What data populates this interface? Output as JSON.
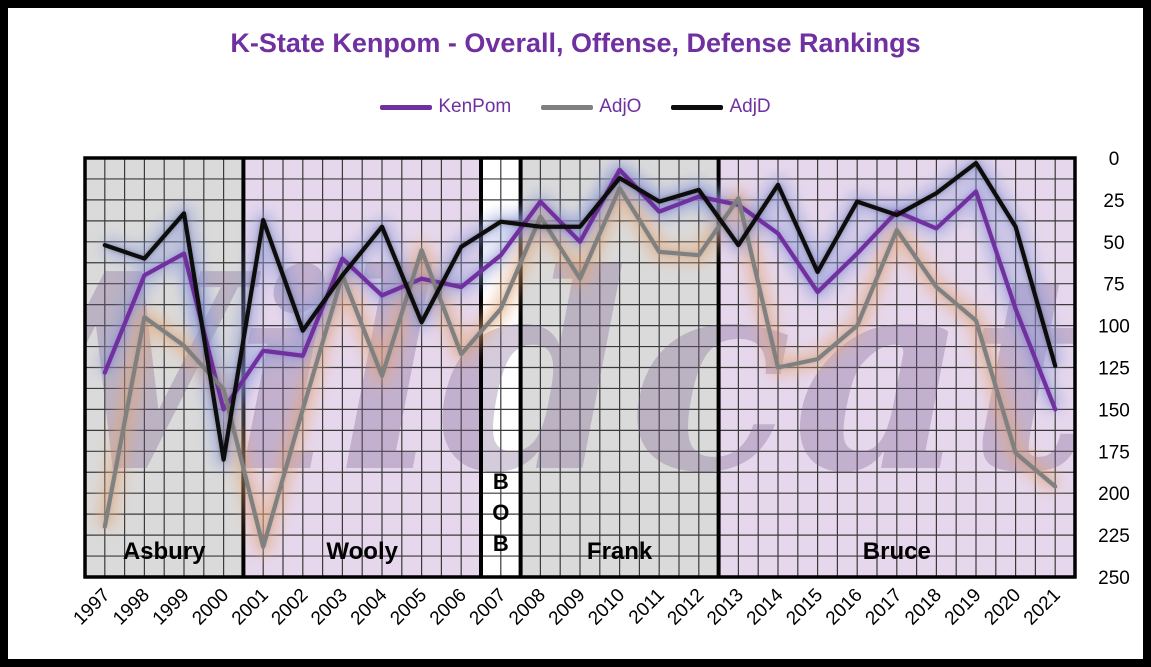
{
  "chart_data": {
    "type": "line",
    "title": "K-State Kenpom - Overall, Offense, Defense Rankings",
    "x": [
      "1997",
      "1998",
      "1999",
      "2000",
      "2001",
      "2002",
      "2003",
      "2004",
      "2005",
      "2006",
      "2007",
      "2008",
      "2009",
      "2010",
      "2011",
      "2012",
      "2013",
      "2014",
      "2015",
      "2016",
      "2017",
      "2018",
      "2019",
      "2020",
      "2021"
    ],
    "series": [
      {
        "name": "KenPom",
        "color": "#7030a0",
        "values": [
          128,
          70,
          57,
          150,
          115,
          118,
          60,
          82,
          72,
          77,
          58,
          26,
          50,
          7,
          32,
          23,
          28,
          45,
          80,
          57,
          32,
          42,
          20,
          90,
          150
        ]
      },
      {
        "name": "AdjO",
        "color": "#808080",
        "values": [
          220,
          95,
          112,
          138,
          232,
          150,
          70,
          130,
          55,
          117,
          90,
          35,
          72,
          18,
          56,
          58,
          24,
          125,
          120,
          100,
          43,
          77,
          97,
          176,
          196
        ]
      },
      {
        "name": "AdjD",
        "color": "#0d0d0d",
        "values": [
          52,
          60,
          33,
          180,
          37,
          103,
          70,
          41,
          98,
          53,
          38,
          41,
          41,
          12,
          26,
          19,
          52,
          16,
          68,
          26,
          34,
          21,
          3,
          41,
          124
        ]
      }
    ],
    "yaxis": {
      "min": 0,
      "max": 250,
      "reversed": true,
      "ticks": [
        "0",
        "25",
        "50",
        "75",
        "100",
        "125",
        "150",
        "175",
        "200",
        "225",
        "250"
      ]
    },
    "grid": true,
    "legend_position": "top-center",
    "eras": [
      {
        "label": "Asbury",
        "start": "1997",
        "end": "2000",
        "fill": "#dadada"
      },
      {
        "label": "Wooly",
        "start": "2001",
        "end": "2006",
        "fill": "#e6d7ec"
      },
      {
        "label": "B O B",
        "letters": [
          "B",
          "O",
          "B"
        ],
        "start": "2007",
        "end": "2007",
        "fill": "#ffffff"
      },
      {
        "label": "Frank",
        "start": "2008",
        "end": "2012",
        "fill": "#dadada"
      },
      {
        "label": "Bruce",
        "start": "2013",
        "end": "2021",
        "fill": "#e6d7ec"
      }
    ],
    "title_color": "#7030a0",
    "legend_text_color": "#7030a0",
    "watermark": "Wildcats"
  }
}
